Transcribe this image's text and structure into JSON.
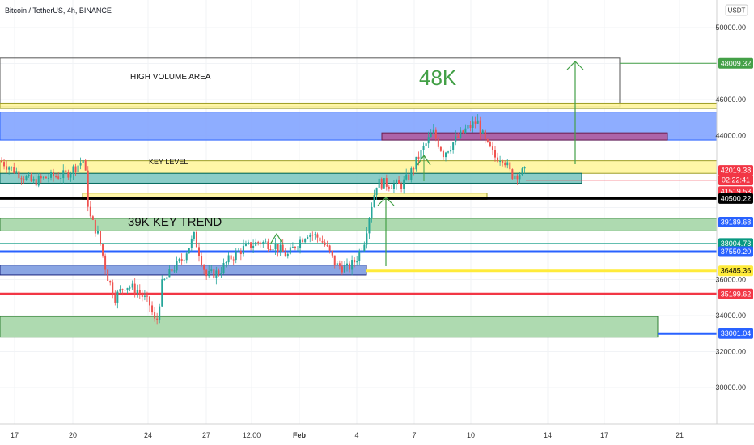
{
  "header": {
    "title": "Bitcoin / TetherUS, 4h, BINANCE"
  },
  "y_axis": {
    "unit_label": "USDT",
    "ticks": [
      "50000.00",
      "46000.00",
      "44000.00",
      "36000.00",
      "34000.00",
      "32000.00",
      "30000.00"
    ]
  },
  "x_axis": {
    "ticks": [
      "17",
      "20",
      "24",
      "27",
      "12:00",
      "Feb",
      "4",
      "7",
      "10",
      "14",
      "17",
      "21"
    ]
  },
  "annotations": {
    "high_volume": "HIGH VOLUME AREA",
    "key_level": "KEY LEVEL",
    "trend": "39K KEY TREND",
    "target": "48K"
  },
  "price_tags": [
    {
      "id": "t48009",
      "text": "48009.32",
      "bg": "#43a047",
      "fg": "#ffffff"
    },
    {
      "id": "t42019",
      "text": "42019.38",
      "bg": "#f23645",
      "fg": "#ffffff"
    },
    {
      "id": "timer",
      "text": "02:22:41",
      "bg": "#f23645",
      "fg": "#ffffff"
    },
    {
      "id": "t41519",
      "text": "41519.53",
      "bg": "#f23645",
      "fg": "#ffffff"
    },
    {
      "id": "t40500",
      "text": "40500.22",
      "bg": "#000000",
      "fg": "#ffffff"
    },
    {
      "id": "t39189",
      "text": "39189.68",
      "bg": "#2962ff",
      "fg": "#ffffff"
    },
    {
      "id": "t38004",
      "text": "38004.73",
      "bg": "#089981",
      "fg": "#ffffff"
    },
    {
      "id": "t37550",
      "text": "37550.20",
      "bg": "#2962ff",
      "fg": "#ffffff"
    },
    {
      "id": "t36485",
      "text": "36485.36",
      "bg": "#ffeb3b",
      "fg": "#000000"
    },
    {
      "id": "t35199",
      "text": "35199.62",
      "bg": "#f23645",
      "fg": "#ffffff"
    },
    {
      "id": "t33001",
      "text": "33001.04",
      "bg": "#2962ff",
      "fg": "#ffffff"
    }
  ],
  "colors": {
    "up": "#26a69a",
    "down": "#ef5350"
  },
  "chart_data": {
    "type": "candlestick",
    "symbol": "BTCUSDT",
    "interval": "4h",
    "exchange": "BINANCE",
    "ylim": [
      29000,
      51000
    ],
    "x_ticks": [
      "17",
      "20",
      "24",
      "27",
      "12:00",
      "Feb",
      "4",
      "7",
      "10",
      "14",
      "17",
      "21"
    ],
    "price_path": [
      {
        "x": 0,
        "v": 42600
      },
      {
        "x": 20,
        "v": 42000
      },
      {
        "x": 40,
        "v": 41400
      },
      {
        "x": 60,
        "v": 41700
      },
      {
        "x": 80,
        "v": 41800
      },
      {
        "x": 95,
        "v": 42300
      },
      {
        "x": 104,
        "v": 42700
      },
      {
        "x": 110,
        "v": 39600
      },
      {
        "x": 122,
        "v": 38400
      },
      {
        "x": 132,
        "v": 36300
      },
      {
        "x": 142,
        "v": 35000
      },
      {
        "x": 155,
        "v": 35700
      },
      {
        "x": 170,
        "v": 35400
      },
      {
        "x": 185,
        "v": 34600
      },
      {
        "x": 193,
        "v": 33400
      },
      {
        "x": 200,
        "v": 35700
      },
      {
        "x": 212,
        "v": 36500
      },
      {
        "x": 225,
        "v": 37100
      },
      {
        "x": 240,
        "v": 38400
      },
      {
        "x": 255,
        "v": 36200
      },
      {
        "x": 270,
        "v": 36400
      },
      {
        "x": 285,
        "v": 37200
      },
      {
        "x": 300,
        "v": 37700
      },
      {
        "x": 320,
        "v": 38100
      },
      {
        "x": 340,
        "v": 37900
      },
      {
        "x": 355,
        "v": 37300
      },
      {
        "x": 365,
        "v": 37900
      },
      {
        "x": 380,
        "v": 38600
      },
      {
        "x": 395,
        "v": 38300
      },
      {
        "x": 405,
        "v": 37700
      },
      {
        "x": 415,
        "v": 36800
      },
      {
        "x": 430,
        "v": 36600
      },
      {
        "x": 440,
        "v": 37100
      },
      {
        "x": 450,
        "v": 38100
      },
      {
        "x": 458,
        "v": 39900
      },
      {
        "x": 466,
        "v": 41400
      },
      {
        "x": 480,
        "v": 41300
      },
      {
        "x": 495,
        "v": 41200
      },
      {
        "x": 505,
        "v": 41700
      },
      {
        "x": 515,
        "v": 42600
      },
      {
        "x": 525,
        "v": 43400
      },
      {
        "x": 535,
        "v": 44200
      },
      {
        "x": 548,
        "v": 43000
      },
      {
        "x": 560,
        "v": 43600
      },
      {
        "x": 575,
        "v": 44300
      },
      {
        "x": 590,
        "v": 44800
      },
      {
        "x": 600,
        "v": 43600
      },
      {
        "x": 612,
        "v": 42800
      },
      {
        "x": 622,
        "v": 42800
      },
      {
        "x": 632,
        "v": 41800
      },
      {
        "x": 642,
        "v": 41900
      },
      {
        "x": 650,
        "v": 42000
      }
    ],
    "zones": [
      {
        "name": "HIGH VOLUME AREA",
        "from": 45600,
        "to": 48300,
        "color": "#ffffff",
        "border": "#555555"
      },
      {
        "name": "upper-yellow",
        "from": 45500,
        "to": 45800,
        "color": "#fff59d",
        "border": "#9e9d24"
      },
      {
        "name": "blue-supply",
        "from": 43750,
        "to": 45300,
        "color": "#82a4ff",
        "border": "#2962ff"
      },
      {
        "name": "purple",
        "from": 43750,
        "to": 44150,
        "color": "#b05c9f",
        "border": "#6a1b4d"
      },
      {
        "name": "KEY LEVEL",
        "from": 41900,
        "to": 42600,
        "color": "#fff59d",
        "border": "#9e9d24"
      },
      {
        "name": "teal",
        "from": 41350,
        "to": 41900,
        "color": "#7ec8c2",
        "border": "#00695c"
      },
      {
        "name": "thin-yellow",
        "from": 40450,
        "to": 40800,
        "color": "#fff59d",
        "border": "#9e9d24"
      },
      {
        "name": "39K KEY TREND",
        "from": 38700,
        "to": 39400,
        "color": "#a5d6a7",
        "border": "#2e7d32"
      },
      {
        "name": "blue-demand",
        "from": 36250,
        "to": 36800,
        "color": "#7d9be0",
        "border": "#1a237e"
      },
      {
        "name": "green-bottom",
        "from": 32800,
        "to": 33950,
        "color": "#a5d6a7",
        "border": "#2e7d32"
      }
    ],
    "levels": [
      {
        "value": 48009.32,
        "color": "#43a047"
      },
      {
        "value": 41519.53,
        "color": "#f23645"
      },
      {
        "value": 40500.22,
        "color": "#000000"
      },
      {
        "value": 38004.73,
        "color": "#089981"
      },
      {
        "value": 37550.2,
        "color": "#2962ff"
      },
      {
        "value": 36485.36,
        "color": "#ffeb3b"
      },
      {
        "value": 35199.62,
        "color": "#f23645"
      },
      {
        "value": 33001.04,
        "color": "#2962ff"
      }
    ]
  }
}
